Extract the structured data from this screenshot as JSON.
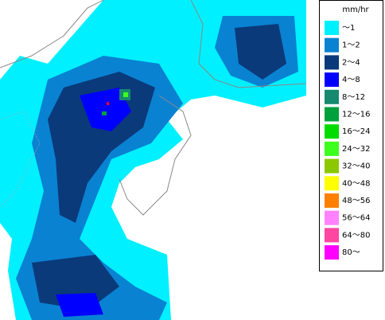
{
  "legend": {
    "unit": "mm/hr",
    "items": [
      {
        "label": "～1",
        "color": "#00f0ff"
      },
      {
        "label": "1～2",
        "color": "#0a82d2"
      },
      {
        "label": "2～4",
        "color": "#0a3a7a"
      },
      {
        "label": "4～8",
        "color": "#0000ff"
      },
      {
        "label": "8～12",
        "color": "#168a6e"
      },
      {
        "label": "12～16",
        "color": "#00a03c"
      },
      {
        "label": "16～24",
        "color": "#00dc00"
      },
      {
        "label": "24～32",
        "color": "#3cff1e"
      },
      {
        "label": "32～40",
        "color": "#8cc800"
      },
      {
        "label": "40～48",
        "color": "#ffff00"
      },
      {
        "label": "48～56",
        "color": "#ff8000"
      },
      {
        "label": "56～64",
        "color": "#ff82ff"
      },
      {
        "label": "64～80",
        "color": "#ff46a0"
      },
      {
        "label": "80～",
        "color": "#ff00ff"
      }
    ]
  }
}
